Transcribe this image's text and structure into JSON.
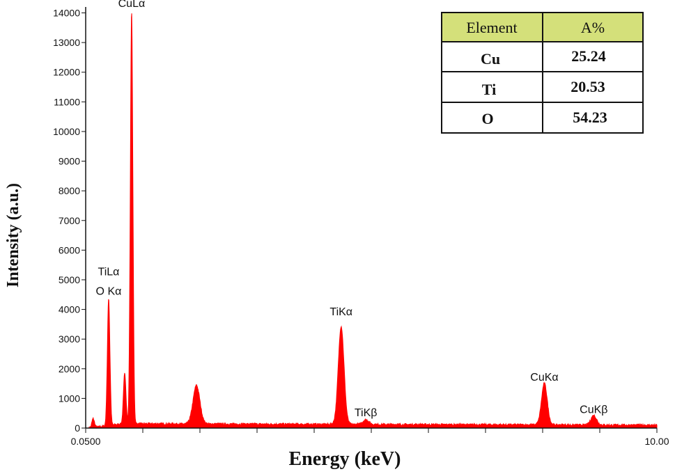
{
  "chart_data": {
    "type": "line",
    "xlabel": "Energy (keV)",
    "ylabel": "Intensity (a.u.)",
    "xlim": [
      0.05,
      10.0
    ],
    "ylim": [
      0,
      14200
    ],
    "x_tick_labels": [
      "0.0500",
      "10.00"
    ],
    "y_ticks": [
      0,
      1000,
      2000,
      3000,
      4000,
      5000,
      6000,
      7000,
      8000,
      9000,
      10000,
      11000,
      12000,
      13000,
      14000
    ],
    "series_color": "#ff0000",
    "spectrum": {
      "background_level": 150,
      "peaks": [
        {
          "x": 0.18,
          "y": 300
        },
        {
          "x": 0.45,
          "y": 4300
        },
        {
          "x": 0.73,
          "y": 1700
        },
        {
          "x": 0.85,
          "y": 13900
        },
        {
          "x": 1.98,
          "y": 1300
        },
        {
          "x": 4.5,
          "y": 3300
        },
        {
          "x": 4.93,
          "y": 160
        },
        {
          "x": 8.04,
          "y": 1400
        },
        {
          "x": 8.9,
          "y": 320
        }
      ]
    },
    "annotations": [
      {
        "label": "CuLα",
        "x": 0.85,
        "y": 14200
      },
      {
        "label": "TiLα",
        "x": 0.45,
        "y": 5150
      },
      {
        "label": "O Kα",
        "x": 0.45,
        "y": 4500
      },
      {
        "label": "TiKα",
        "x": 4.5,
        "y": 3800
      },
      {
        "label": "TiKβ",
        "x": 4.93,
        "y": 400
      },
      {
        "label": "CuKα",
        "x": 8.04,
        "y": 1600
      },
      {
        "label": "CuKβ",
        "x": 8.9,
        "y": 500
      }
    ]
  },
  "composition_table": {
    "header": [
      "Element",
      "A%"
    ],
    "header_bg": "#d4e07a",
    "rows": [
      {
        "element": "Cu",
        "value": "25.24"
      },
      {
        "element": "Ti",
        "value": "20.53"
      },
      {
        "element": "O",
        "value": "54.23"
      }
    ]
  }
}
